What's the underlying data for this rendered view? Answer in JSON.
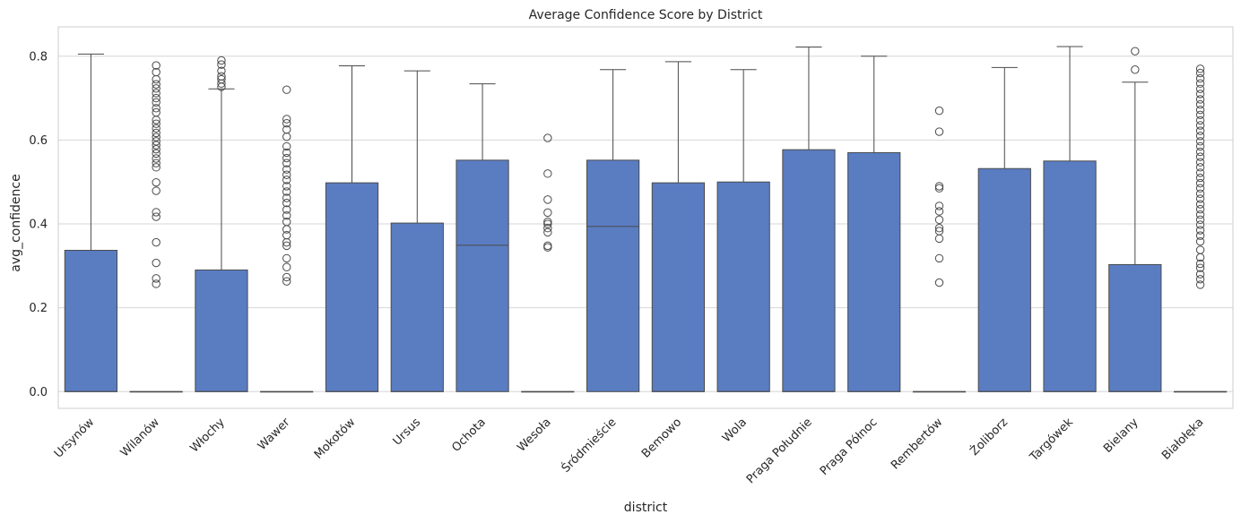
{
  "chart_data": {
    "type": "box",
    "title": "Average Confidence Score by District",
    "xlabel": "district",
    "ylabel": "avg_confidence",
    "ylim": [
      -0.04,
      0.87
    ],
    "yticks": [
      "0.0",
      "0.2",
      "0.4",
      "0.6",
      "0.8"
    ],
    "ytick_values": [
      0.0,
      0.2,
      0.4,
      0.6,
      0.8
    ],
    "grid": true,
    "box_color": "#5a7dc2",
    "categories": [
      "Ursynów",
      "Wilanów",
      "Włochy",
      "Wawer",
      "Mokotów",
      "Ursus",
      "Ochota",
      "Wesoła",
      "Śródmieście",
      "Bemowo",
      "Wola",
      "Praga Południe",
      "Praga Północ",
      "Rembertów",
      "Żoliborz",
      "Targówek",
      "Bielany",
      "Białołęka"
    ],
    "boxes": [
      {
        "min": 0.0,
        "q1": 0.0,
        "median": 0.0,
        "q3": 0.337,
        "max": 0.805,
        "outliers": []
      },
      {
        "min": 0.0,
        "q1": 0.0,
        "median": 0.0,
        "q3": 0.0,
        "max": 0.0,
        "outliers": [
          0.257,
          0.27,
          0.307,
          0.356,
          0.417,
          0.428,
          0.479,
          0.499,
          0.535,
          0.545,
          0.556,
          0.568,
          0.578,
          0.588,
          0.597,
          0.607,
          0.617,
          0.628,
          0.639,
          0.648,
          0.666,
          0.676,
          0.69,
          0.7,
          0.712,
          0.723,
          0.733,
          0.745,
          0.762,
          0.778
        ]
      },
      {
        "min": 0.0,
        "q1": 0.0,
        "median": 0.0,
        "q3": 0.29,
        "max": 0.722,
        "outliers": [
          0.727,
          0.735,
          0.745,
          0.752,
          0.765,
          0.78,
          0.79
        ]
      },
      {
        "min": 0.0,
        "q1": 0.0,
        "median": 0.0,
        "q3": 0.0,
        "max": 0.0,
        "outliers": [
          0.263,
          0.273,
          0.297,
          0.318,
          0.348,
          0.356,
          0.373,
          0.387,
          0.405,
          0.42,
          0.434,
          0.45,
          0.462,
          0.477,
          0.49,
          0.505,
          0.517,
          0.53,
          0.545,
          0.557,
          0.57,
          0.585,
          0.608,
          0.625,
          0.64,
          0.65,
          0.72
        ]
      },
      {
        "min": 0.0,
        "q1": 0.0,
        "median": 0.0,
        "q3": 0.498,
        "max": 0.777,
        "outliers": []
      },
      {
        "min": 0.0,
        "q1": 0.0,
        "median": 0.0,
        "q3": 0.402,
        "max": 0.765,
        "outliers": []
      },
      {
        "min": 0.0,
        "q1": 0.0,
        "median": 0.349,
        "q3": 0.552,
        "max": 0.734,
        "outliers": []
      },
      {
        "min": 0.0,
        "q1": 0.0,
        "median": 0.0,
        "q3": 0.0,
        "max": 0.0,
        "outliers": [
          0.344,
          0.348,
          0.38,
          0.39,
          0.4,
          0.405,
          0.427,
          0.458,
          0.52,
          0.605
        ]
      },
      {
        "min": 0.0,
        "q1": 0.0,
        "median": 0.394,
        "q3": 0.552,
        "max": 0.768,
        "outliers": []
      },
      {
        "min": 0.0,
        "q1": 0.0,
        "median": 0.0,
        "q3": 0.498,
        "max": 0.787,
        "outliers": []
      },
      {
        "min": 0.0,
        "q1": 0.0,
        "median": 0.0,
        "q3": 0.5,
        "max": 0.768,
        "outliers": []
      },
      {
        "min": 0.0,
        "q1": 0.0,
        "median": 0.0,
        "q3": 0.577,
        "max": 0.822,
        "outliers": []
      },
      {
        "min": 0.0,
        "q1": 0.0,
        "median": 0.0,
        "q3": 0.57,
        "max": 0.8,
        "outliers": []
      },
      {
        "min": 0.0,
        "q1": 0.0,
        "median": 0.0,
        "q3": 0.0,
        "max": 0.0,
        "outliers": [
          0.26,
          0.318,
          0.365,
          0.383,
          0.39,
          0.41,
          0.43,
          0.443,
          0.485,
          0.49,
          0.62,
          0.67
        ]
      },
      {
        "min": 0.0,
        "q1": 0.0,
        "median": 0.0,
        "q3": 0.532,
        "max": 0.773,
        "outliers": []
      },
      {
        "min": 0.0,
        "q1": 0.0,
        "median": 0.0,
        "q3": 0.55,
        "max": 0.823,
        "outliers": []
      },
      {
        "min": 0.0,
        "q1": 0.0,
        "median": 0.0,
        "q3": 0.303,
        "max": 0.738,
        "outliers": [
          0.768,
          0.812
        ]
      },
      {
        "min": 0.0,
        "q1": 0.0,
        "median": 0.0,
        "q3": 0.0,
        "max": 0.0,
        "outliers": [
          0.255,
          0.268,
          0.28,
          0.295,
          0.305,
          0.32,
          0.338,
          0.358,
          0.372,
          0.385,
          0.398,
          0.41,
          0.422,
          0.435,
          0.447,
          0.46,
          0.472,
          0.485,
          0.497,
          0.51,
          0.522,
          0.535,
          0.547,
          0.56,
          0.572,
          0.585,
          0.597,
          0.61,
          0.622,
          0.635,
          0.647,
          0.66,
          0.672,
          0.685,
          0.697,
          0.71,
          0.722,
          0.735,
          0.747,
          0.76,
          0.77
        ]
      }
    ]
  }
}
